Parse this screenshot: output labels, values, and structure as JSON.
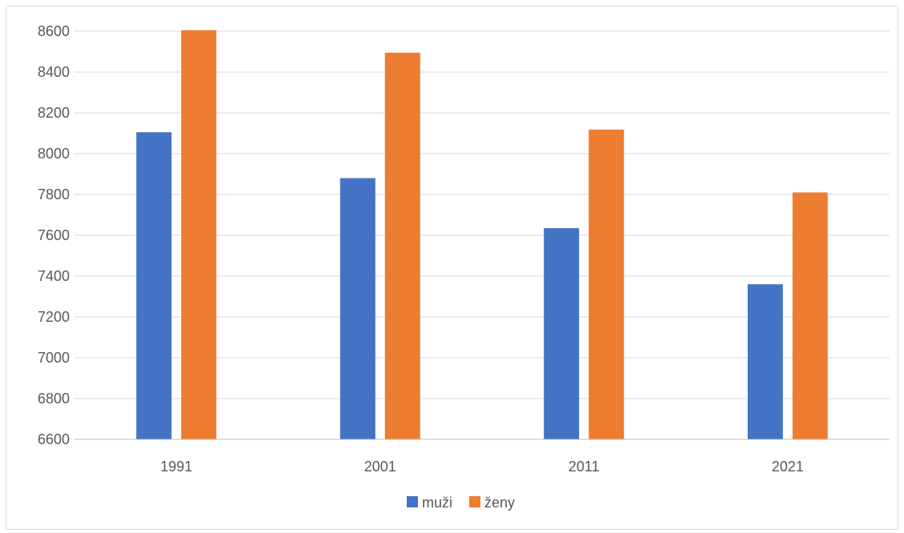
{
  "chart_data": {
    "type": "bar",
    "categories": [
      "1991",
      "2001",
      "2011",
      "2021"
    ],
    "series": [
      {
        "name": "muži",
        "values": [
          8105,
          7880,
          7635,
          7360
        ],
        "color": "#4472C4"
      },
      {
        "name": "ženy",
        "values": [
          8605,
          8495,
          8118,
          7810
        ],
        "color": "#ED7D31"
      }
    ],
    "title": "",
    "xlabel": "",
    "ylabel": "",
    "ylim": [
      6600,
      8600
    ],
    "yticks": [
      6600,
      6800,
      7000,
      7200,
      7400,
      7600,
      7800,
      8000,
      8200,
      8400,
      8600
    ],
    "grid": true,
    "legend": "bottom",
    "gridline_color": "#d9d9d9",
    "axis_color": "#bfbfbf"
  }
}
